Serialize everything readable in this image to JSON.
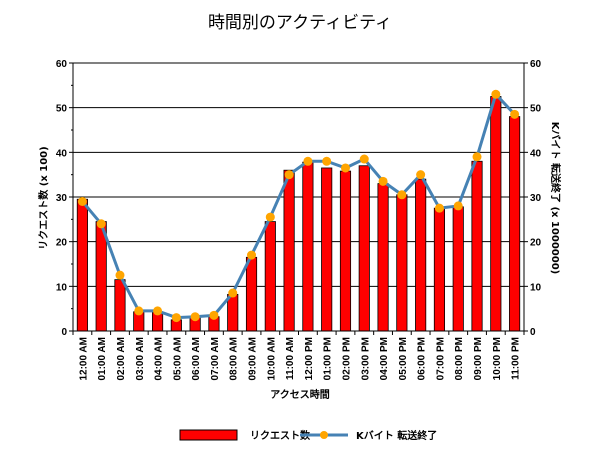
{
  "chart_data": {
    "type": "bar",
    "title": "時間別のアクティビティ",
    "xlabel": "アクセス時間",
    "ylabel": "リクエスト数 (x 100)",
    "y2label": "Kバイト 転送終了 (x 1000000)",
    "ylim": [
      0,
      60
    ],
    "y2lim": [
      0,
      60
    ],
    "yticks": [
      "0",
      "10",
      "20",
      "30",
      "40",
      "50",
      "60"
    ],
    "y2ticks": [
      "0",
      "10",
      "20",
      "30",
      "40",
      "50",
      "60"
    ],
    "grid": true,
    "legend_position": "bottom",
    "categories": [
      "12:00 AM",
      "01:00 AM",
      "02:00 AM",
      "03:00 AM",
      "04:00 AM",
      "05:00 AM",
      "06:00 AM",
      "07:00 AM",
      "08:00 AM",
      "09:00 AM",
      "10:00 AM",
      "11:00 AM",
      "12:00 PM",
      "01:00 PM",
      "02:00 PM",
      "03:00 PM",
      "04:00 PM",
      "05:00 PM",
      "06:00 PM",
      "07:00 PM",
      "08:00 PM",
      "09:00 PM",
      "10:00 PM",
      "11:00 PM"
    ],
    "series": [
      {
        "name": "リクエスト数",
        "kind": "bar",
        "axis": "left",
        "color": "#ff0000",
        "values": [
          29.5,
          24.5,
          11.5,
          4.3,
          4.2,
          2.5,
          3.2,
          3.2,
          8.2,
          16.5,
          24.5,
          36,
          37.8,
          36.5,
          35.8,
          37,
          33,
          30.5,
          34,
          27.5,
          27.8,
          38,
          52.5,
          48
        ]
      },
      {
        "name": "Kバイト 転送終了",
        "kind": "line",
        "axis": "right",
        "color": "#4682b4",
        "marker_color": "#ffa500",
        "values": [
          29,
          24,
          12.5,
          4.5,
          4.5,
          3,
          3.2,
          3.5,
          8.5,
          17,
          25.5,
          35,
          38,
          38,
          36.5,
          38.5,
          33.5,
          30.5,
          35,
          27.5,
          28,
          39,
          53,
          48.5
        ]
      }
    ]
  }
}
